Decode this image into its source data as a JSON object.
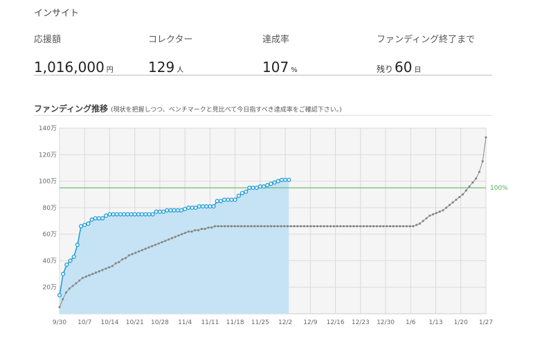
{
  "insight": {
    "title": "インサイト"
  },
  "stats": {
    "amount": {
      "label": "応援額",
      "value": "1,016,000",
      "unit": "円"
    },
    "collectors": {
      "label": "コレクター",
      "value": "129",
      "unit": "人"
    },
    "rate": {
      "label": "達成率",
      "value": "107",
      "unit": "%"
    },
    "remaining": {
      "label": "ファンディング終了まで",
      "prefix": "残り",
      "value": "60",
      "unit": "日"
    }
  },
  "chart_section": {
    "title": "ファンディング推移",
    "subtitle": "(現状を把握しつつ、ベンチマークと見比べて今日指すべき達成率をご確認下さい。)"
  },
  "colors": {
    "actual": "#1a9bd7",
    "fill": "#c5e3f5",
    "benchmark": "#888888",
    "goal": "#4caf50",
    "plot_bg": "#f5f5f5"
  },
  "chart_data": {
    "type": "line",
    "x_ticks": [
      "9/30",
      "10/7",
      "10/14",
      "10/21",
      "10/28",
      "11/4",
      "11/11",
      "11/18",
      "11/25",
      "12/2",
      "12/9",
      "12/16",
      "12/23",
      "12/30",
      "1/6",
      "1/13",
      "1/20",
      "1/27"
    ],
    "y_ticks": [
      "20万",
      "40万",
      "60万",
      "80万",
      "100万",
      "120万",
      "140万"
    ],
    "ylim": [
      0,
      140
    ],
    "goal_line": {
      "value": 95,
      "label": "100%"
    },
    "series": [
      {
        "values": [
          14,
          30,
          37,
          40,
          43,
          52,
          66,
          67,
          68,
          71,
          72,
          72,
          72,
          74,
          75,
          75,
          75,
          75,
          75,
          75,
          75,
          75,
          75,
          75,
          75,
          75,
          75,
          77,
          77,
          77,
          78,
          78,
          78,
          78,
          78,
          79,
          80,
          80,
          80,
          81,
          81,
          81,
          81,
          81,
          85,
          85,
          86,
          86,
          86,
          86,
          89,
          91,
          92,
          95,
          95,
          95,
          96,
          96,
          97,
          98,
          99,
          100,
          101,
          101,
          101
        ]
      },
      {
        "values": [
          5,
          11,
          16,
          19,
          21,
          23,
          25,
          27,
          28,
          29,
          30,
          31,
          32,
          33,
          34,
          35,
          36,
          38,
          39,
          41,
          42,
          44,
          45,
          46,
          47,
          48,
          49,
          50,
          51,
          52,
          53,
          54,
          55,
          56,
          57,
          58,
          59,
          60,
          61,
          62,
          62,
          63,
          63,
          64,
          64,
          65,
          65,
          66,
          66,
          66,
          66,
          66,
          66,
          66,
          66,
          66,
          66,
          66,
          66,
          66,
          66,
          66,
          66,
          66,
          66,
          66,
          66,
          66,
          66,
          66,
          66,
          66,
          66,
          66,
          66,
          66,
          66,
          66,
          66,
          66,
          66,
          66,
          66,
          66,
          66,
          66,
          66,
          66,
          66,
          66,
          66,
          66,
          66,
          66,
          66,
          66,
          66,
          66,
          66,
          66,
          66,
          66,
          66,
          66,
          66,
          66,
          66,
          66,
          67,
          68,
          70,
          72,
          74,
          75,
          76,
          77,
          78,
          80,
          82,
          84,
          86,
          88,
          90,
          93,
          96,
          99,
          102,
          107,
          115,
          133
        ]
      }
    ]
  }
}
